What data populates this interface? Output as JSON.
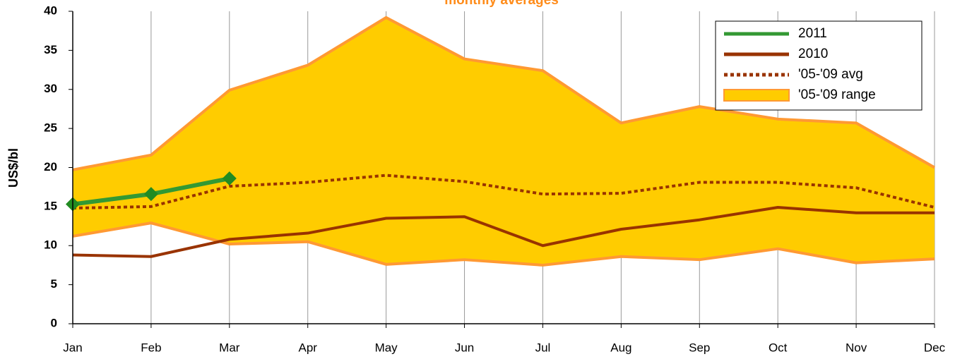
{
  "chart_data": {
    "type": "line",
    "title": "monthly averages",
    "y_label": "US$/bl",
    "categories": [
      "Jan",
      "Feb",
      "Mar",
      "Apr",
      "May",
      "Jun",
      "Jul",
      "Aug",
      "Sep",
      "Oct",
      "Nov",
      "Dec"
    ],
    "ylim": [
      0,
      40
    ],
    "yticks": [
      0,
      5,
      10,
      15,
      20,
      25,
      30,
      35,
      40
    ],
    "grid": "x",
    "legend": "upper right",
    "series": [
      {
        "name": "2011",
        "color": "#339933",
        "style": "solid",
        "markers": true,
        "values": [
          15.3,
          16.6,
          18.6,
          null,
          null,
          null,
          null,
          null,
          null,
          null,
          null,
          null
        ]
      },
      {
        "name": "2010",
        "color": "#993300",
        "style": "solid",
        "values": [
          8.8,
          8.6,
          10.8,
          11.6,
          13.5,
          13.7,
          10.0,
          12.1,
          13.3,
          14.9,
          14.2,
          14.2
        ]
      },
      {
        "name": "'05-'09 avg",
        "color": "#993300",
        "style": "dotted",
        "values": [
          14.8,
          15.0,
          17.6,
          18.1,
          19.0,
          18.2,
          16.6,
          16.7,
          18.1,
          18.1,
          17.4,
          14.9
        ]
      },
      {
        "name": "'05-'09 range",
        "color": "#ffcc00",
        "edge_color": "#ff9933",
        "style": "band",
        "high": [
          19.7,
          21.6,
          29.9,
          33.1,
          39.2,
          33.9,
          32.4,
          25.7,
          27.8,
          26.2,
          25.7,
          20.0
        ],
        "low": [
          11.2,
          12.9,
          10.2,
          10.5,
          7.6,
          8.2,
          7.5,
          8.6,
          8.2,
          9.6,
          7.8,
          8.3
        ]
      }
    ]
  }
}
